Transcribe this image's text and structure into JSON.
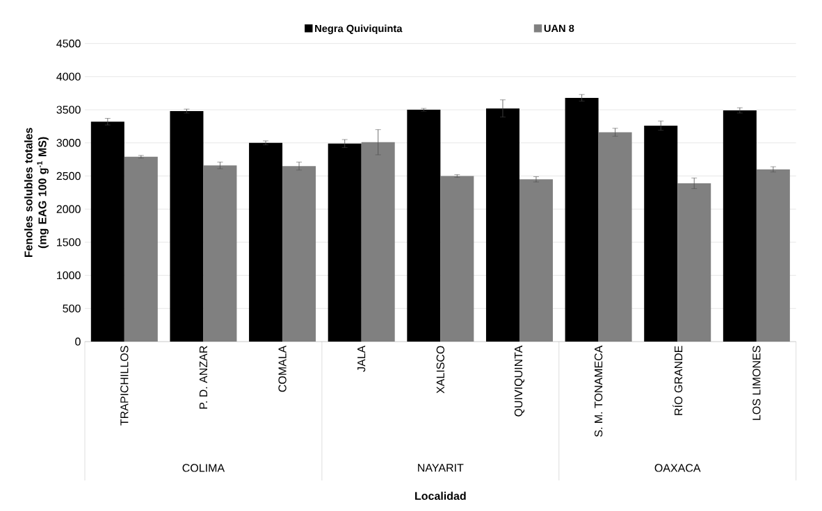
{
  "chart_data": {
    "type": "bar",
    "xlabel": "Localidad",
    "ylabel": "Fenoles solubles totales (mg EAG 100 g$^{-1}$ MS)",
    "categories": [
      "TRAPICHILLOS",
      "P. D. ANZAR",
      "COMALA",
      "JALA",
      "XALISCO",
      "QUIVIQUINTA",
      "S. M. TONAMECA",
      "RÍO GRANDE",
      "LOS LIMONES"
    ],
    "series": [
      {
        "name": "Negra Quiviquinta",
        "color": "#000000",
        "values": [
          3320,
          3480,
          3000,
          2990,
          3500,
          3520,
          3680,
          3260,
          3490
        ],
        "errors": [
          50,
          30,
          30,
          60,
          20,
          130,
          50,
          70,
          40
        ]
      },
      {
        "name": "UAN 8",
        "color": "#808080",
        "values": [
          2790,
          2660,
          2650,
          3010,
          2500,
          2450,
          3160,
          2390,
          2600
        ],
        "errors": [
          20,
          50,
          60,
          190,
          20,
          40,
          60,
          80,
          40
        ]
      }
    ],
    "annotations": [
      "COLIMA",
      "NAYARIT",
      "OAXACA"
    ],
    "ylim": [
      0,
      4500
    ],
    "yticks": [
      0,
      500,
      1000,
      1500,
      2000,
      2500,
      3000,
      3500,
      4000,
      4500
    ],
    "grid": "y",
    "legend": "top"
  }
}
